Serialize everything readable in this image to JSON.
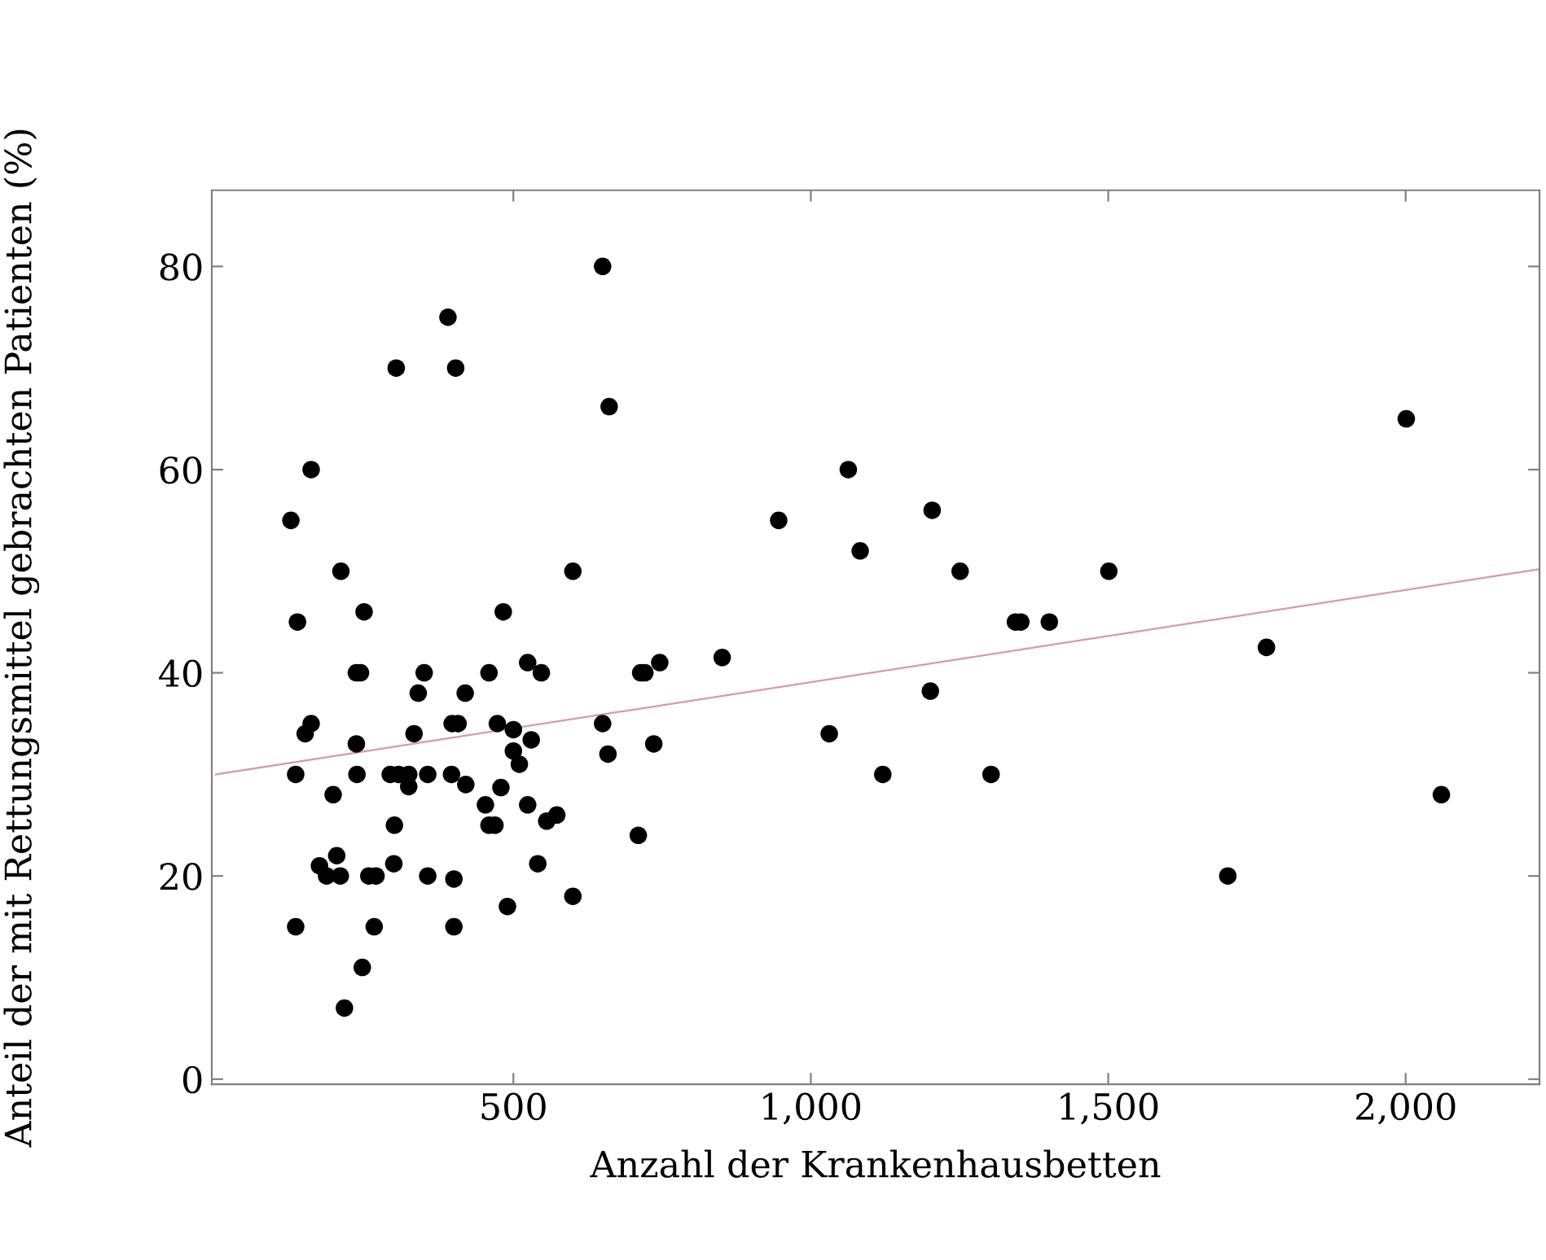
{
  "chart_data": {
    "type": "scatter",
    "xlabel": "Anzahl der Krankenhausbetten",
    "ylabel": "Anteil der mit Rettungsmittel gebrachten Patienten (%)",
    "xlim": [
      -7,
      2225
    ],
    "ylim": [
      -0.5,
      87.5
    ],
    "xticks": [
      {
        "value": 500,
        "label": "500"
      },
      {
        "value": 1000,
        "label": "1,000"
      },
      {
        "value": 1500,
        "label": "1,500"
      },
      {
        "value": 2000,
        "label": "2,000"
      }
    ],
    "yticks": [
      0,
      20,
      40,
      60,
      80
    ],
    "grid": false,
    "legend": false,
    "series": [
      {
        "color": "#000000",
        "marker": "circle",
        "x": [
          650,
          390,
          303,
          403,
          661,
          160,
          126,
          210,
          137,
          249,
          483,
          600,
          236,
          243,
          350,
          340,
          419,
          459,
          524,
          547,
          160,
          150,
          236,
          333,
          397,
          407,
          473,
          500,
          530,
          500,
          510,
          134,
          237,
          293,
          307,
          324,
          356,
          396,
          324,
          420,
          479,
          197,
          453,
          524,
          300,
          459,
          469,
          556,
          573,
          174,
          203,
          186,
          209,
          257,
          269,
          299,
          356,
          400,
          541,
          490,
          600,
          134,
          266,
          400,
          246,
          216,
          650,
          659,
          736,
          710,
          714,
          721,
          746,
          851,
          946,
          1063,
          1083,
          1204,
          1251,
          1201,
          1031,
          1121,
          1303,
          1344,
          1353,
          1401,
          1501,
          1701,
          1766,
          2001,
          2060
        ],
        "values": [
          80,
          75,
          70,
          70,
          66.2,
          60,
          55,
          50,
          45,
          46,
          46,
          50,
          40,
          40,
          40,
          38,
          38,
          40,
          41,
          40,
          35,
          34,
          33,
          34,
          35,
          35,
          35,
          34.4,
          33.4,
          32.3,
          31,
          30,
          30,
          30,
          30,
          30,
          30,
          30,
          28.8,
          29,
          28.7,
          28,
          27,
          27,
          25,
          25,
          25,
          25.4,
          26,
          21,
          22,
          20,
          20,
          20,
          20,
          21.2,
          20,
          19.7,
          21.2,
          17,
          18,
          15,
          15,
          15,
          11,
          7,
          35,
          32,
          33,
          24,
          40,
          40,
          41,
          41.5,
          55,
          60,
          52,
          56,
          50,
          38.2,
          34,
          30,
          30,
          45,
          45,
          45,
          50,
          20,
          42.5,
          65,
          28
        ]
      },
      {
        "type": "line",
        "color": "#d99a9a",
        "marker": "none",
        "line_style": "solid",
        "x": [
          0,
          2225
        ],
        "values": [
          30.0,
          50.2
        ]
      }
    ]
  }
}
